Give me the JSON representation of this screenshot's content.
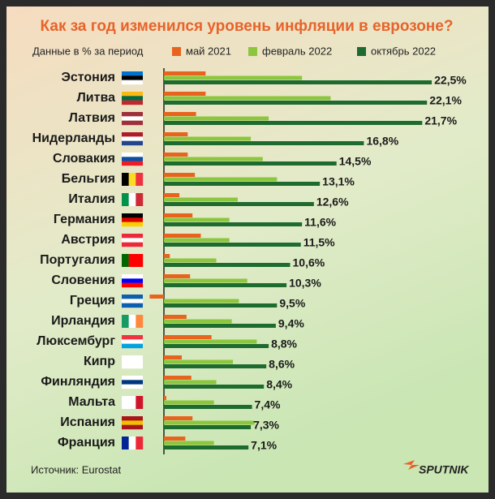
{
  "chart_data": {
    "type": "bar",
    "orientation": "horizontal",
    "title": "Как за год изменился уровень инфляции в еврозоне?",
    "subtitle": "Данные в % за период",
    "source": "Источник: Eurostat",
    "logo": "SPUTNIK",
    "categories": [
      "Эстония",
      "Литва",
      "Латвия",
      "Нидерланды",
      "Словакия",
      "Бельгия",
      "Италия",
      "Германия",
      "Австрия",
      "Португалия",
      "Словения",
      "Греция",
      "Ирландия",
      "Люксембург",
      "Кипр",
      "Финляндия",
      "Мальта",
      "Испания",
      "Франция"
    ],
    "series": [
      {
        "name": "май 2021",
        "color": "#e8641e",
        "values": [
          3.5,
          3.5,
          2.7,
          2.0,
          2.0,
          2.6,
          1.3,
          2.4,
          3.1,
          0.5,
          2.2,
          -1.2,
          1.9,
          4.0,
          1.5,
          2.3,
          0.2,
          2.4,
          1.8
        ]
      },
      {
        "name": "февраль 2022",
        "color": "#8cc63f",
        "values": [
          11.6,
          14.0,
          8.8,
          7.3,
          8.3,
          9.5,
          6.2,
          5.5,
          5.5,
          4.4,
          7.0,
          6.3,
          5.7,
          7.8,
          5.8,
          4.4,
          4.2,
          7.6,
          4.2
        ]
      },
      {
        "name": "октябрь 2022",
        "color": "#1e6b30",
        "values": [
          22.5,
          22.1,
          21.7,
          16.8,
          14.5,
          13.1,
          12.6,
          11.6,
          11.5,
          10.6,
          10.3,
          9.5,
          9.4,
          8.8,
          8.6,
          8.4,
          7.4,
          7.3,
          7.1
        ],
        "value_labels": [
          "22,5%",
          "22,1%",
          "21,7%",
          "16,8%",
          "14,5%",
          "13,1%",
          "12,6%",
          "11,6%",
          "11,5%",
          "10,6%",
          "10,3%",
          "9,5%",
          "9,4%",
          "8,8%",
          "8,6%",
          "8,4%",
          "7,4%",
          "7,3%",
          "7,1%"
        ]
      }
    ]
  }
}
